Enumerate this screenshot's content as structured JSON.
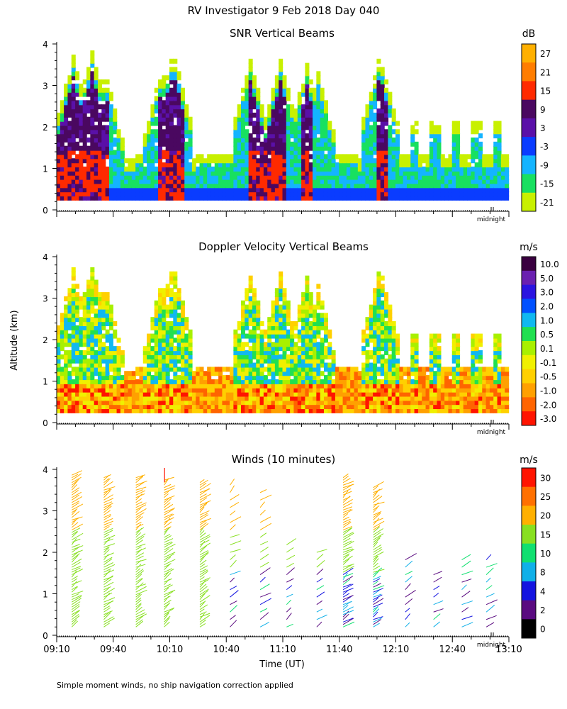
{
  "title": "RV Investigator   9 Feb 2018 Day 040",
  "footnote": "Simple moment winds, no ship navigation correction applied",
  "ylabel": "Altitude (km)",
  "xlabel": "Time (UT)",
  "midnight_label": "midnight",
  "chart_data": [
    {
      "type": "heatmap",
      "title": "SNR Vertical Beams",
      "ylabel": "Altitude (km)",
      "ylim": [
        0,
        4
      ],
      "yticks": [
        "0",
        "1",
        "2",
        "3",
        "4"
      ],
      "xlim": [
        "09:10",
        "13:10"
      ],
      "colorbar": {
        "unit": "dB",
        "labels": [
          "27",
          "21",
          "15",
          "9",
          "3",
          "-3",
          "-9",
          "-15",
          "-21"
        ],
        "colors": [
          "#ffb000",
          "#ff7d00",
          "#ff2a00",
          "#4a0860",
          "#5a10a8",
          "#0a3cff",
          "#14b4ff",
          "#18e060",
          "#c8f000"
        ]
      },
      "cloud_columns": [
        {
          "start": "09:10",
          "end": "09:35",
          "top_km": 3.8
        },
        {
          "start": "10:08",
          "end": "10:18",
          "top_km": 3.6
        },
        {
          "start": "10:45",
          "end": "11:10",
          "top_km": 3.6
        },
        {
          "start": "11:25",
          "end": "11:35",
          "top_km": 3.5
        },
        {
          "start": "11:55",
          "end": "12:05",
          "top_km": 3.5
        }
      ]
    },
    {
      "type": "heatmap",
      "title": "Doppler Velocity Vertical Beams",
      "ylabel": "Altitude (km)",
      "ylim": [
        0,
        4
      ],
      "yticks": [
        "0",
        "1",
        "2",
        "3",
        "4"
      ],
      "colorbar": {
        "unit": "m/s",
        "labels": [
          "10.0",
          "5.0",
          "3.0",
          "2.0",
          "1.0",
          "0.5",
          "0.1",
          "-0.1",
          "-0.5",
          "-1.0",
          "-2.0",
          "-3.0"
        ],
        "colors": [
          "#3a0040",
          "#6a20b0",
          "#2a14e0",
          "#0050ff",
          "#10b8f0",
          "#20e050",
          "#a8f000",
          "#f0f000",
          "#ffd000",
          "#ffa000",
          "#ff6400",
          "#ff1400"
        ]
      }
    },
    {
      "type": "wind-barbs",
      "title": "Winds (10 minutes)",
      "ylim": [
        0,
        4
      ],
      "yticks": [
        "0",
        "1",
        "2",
        "3",
        "4"
      ],
      "xtick_labels": [
        "09:10",
        "09:40",
        "10:10",
        "10:40",
        "11:10",
        "11:40",
        "12:10",
        "12:40",
        "13:10"
      ],
      "colorbar": {
        "unit": "m/s",
        "labels": [
          "30",
          "25",
          "20",
          "15",
          "10",
          "8",
          "4",
          "2",
          "0"
        ],
        "colors": [
          "#ff1400",
          "#ff7000",
          "#ffb000",
          "#88e020",
          "#10e070",
          "#10b0e8",
          "#1414e0",
          "#5a0a80",
          "#000000"
        ]
      }
    }
  ]
}
